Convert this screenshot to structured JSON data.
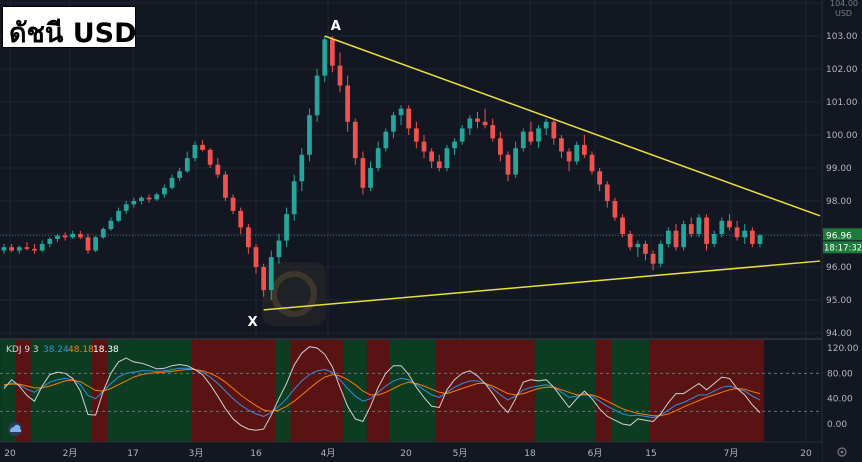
{
  "title": "ดัชนี USD",
  "colors": {
    "background": "#131722",
    "grid": "#1f2532",
    "up": "#26a69a",
    "down": "#ef5350",
    "trendline": "#e8e03a",
    "k_line": "#2f8fde",
    "d_line": "#f57c00",
    "j_line": "#d0d0d0",
    "kdj_bg_up": "#0c3d22",
    "kdj_bg_down": "#5a1313",
    "current_price_bg": "#1c7a3a"
  },
  "chart_data": [
    {
      "type": "candlestick",
      "symbol": "USD",
      "currency_label": "USD",
      "y_ticks": [
        "104.00",
        "103.00",
        "102.00",
        "101.00",
        "100.00",
        "99.00",
        "98.00",
        "97.00",
        "96.00",
        "95.00",
        "94.00"
      ],
      "ylim": [
        94.0,
        104.0
      ],
      "x_tick_labels": [
        "20",
        "2月",
        "17",
        "3月",
        "16",
        "4月",
        "20",
        "5月",
        "18",
        "6月",
        "15",
        "7月",
        "20"
      ],
      "current_price": "96.96",
      "countdown": "18:17:32",
      "pattern_points": {
        "A": "A",
        "X": "X"
      },
      "ohlc": [
        [
          96.5,
          96.7,
          96.4,
          96.6
        ],
        [
          96.6,
          96.7,
          96.45,
          96.5
        ],
        [
          96.5,
          96.65,
          96.4,
          96.6
        ],
        [
          96.6,
          96.75,
          96.5,
          96.55
        ],
        [
          96.55,
          96.7,
          96.4,
          96.5
        ],
        [
          96.5,
          96.8,
          96.45,
          96.7
        ],
        [
          96.7,
          96.9,
          96.6,
          96.85
        ],
        [
          96.85,
          97.0,
          96.75,
          96.95
        ],
        [
          96.95,
          97.05,
          96.8,
          96.9
        ],
        [
          96.9,
          97.1,
          96.85,
          97.0
        ],
        [
          97.0,
          97.1,
          96.85,
          96.9
        ],
        [
          96.9,
          97.0,
          96.4,
          96.5
        ],
        [
          96.5,
          96.95,
          96.45,
          96.9
        ],
        [
          96.9,
          97.2,
          96.85,
          97.15
        ],
        [
          97.15,
          97.5,
          97.1,
          97.4
        ],
        [
          97.4,
          97.8,
          97.35,
          97.7
        ],
        [
          97.7,
          98.0,
          97.6,
          97.9
        ],
        [
          97.9,
          98.1,
          97.8,
          98.0
        ],
        [
          98.0,
          98.15,
          97.9,
          98.1
        ],
        [
          98.1,
          98.2,
          97.95,
          98.05
        ],
        [
          98.05,
          98.25,
          98.0,
          98.2
        ],
        [
          98.2,
          98.5,
          98.1,
          98.4
        ],
        [
          98.4,
          98.8,
          98.35,
          98.7
        ],
        [
          98.7,
          99.0,
          98.6,
          98.9
        ],
        [
          98.9,
          99.5,
          98.85,
          99.3
        ],
        [
          99.3,
          99.8,
          99.2,
          99.7
        ],
        [
          99.7,
          99.85,
          99.5,
          99.55
        ],
        [
          99.55,
          99.6,
          99.0,
          99.1
        ],
        [
          99.1,
          99.3,
          98.7,
          98.8
        ],
        [
          98.8,
          98.9,
          98.0,
          98.1
        ],
        [
          98.1,
          98.2,
          97.6,
          97.7
        ],
        [
          97.7,
          97.8,
          97.0,
          97.2
        ],
        [
          97.2,
          97.3,
          96.4,
          96.6
        ],
        [
          96.6,
          96.7,
          95.8,
          96.0
        ],
        [
          96.0,
          96.1,
          95.1,
          95.3
        ],
        [
          95.3,
          96.5,
          95.0,
          96.3
        ],
        [
          96.3,
          97.0,
          96.1,
          96.8
        ],
        [
          96.8,
          97.8,
          96.6,
          97.6
        ],
        [
          97.6,
          98.8,
          97.4,
          98.6
        ],
        [
          98.6,
          99.6,
          98.3,
          99.4
        ],
        [
          99.4,
          100.8,
          99.2,
          100.6
        ],
        [
          100.6,
          102.0,
          100.4,
          101.8
        ],
        [
          101.8,
          103.0,
          101.6,
          102.9
        ],
        [
          102.9,
          103.0,
          101.9,
          102.1
        ],
        [
          102.1,
          102.5,
          101.3,
          101.5
        ],
        [
          101.5,
          101.8,
          100.1,
          100.4
        ],
        [
          100.4,
          100.5,
          99.1,
          99.3
        ],
        [
          99.3,
          99.5,
          98.2,
          98.4
        ],
        [
          98.4,
          99.2,
          98.3,
          99.0
        ],
        [
          99.0,
          99.8,
          98.9,
          99.6
        ],
        [
          99.6,
          100.2,
          99.5,
          100.1
        ],
        [
          100.1,
          100.7,
          99.9,
          100.6
        ],
        [
          100.6,
          100.9,
          100.3,
          100.8
        ],
        [
          100.8,
          100.9,
          100.0,
          100.2
        ],
        [
          100.2,
          100.4,
          99.6,
          99.8
        ],
        [
          99.8,
          100.0,
          99.3,
          99.5
        ],
        [
          99.5,
          99.6,
          99.0,
          99.2
        ],
        [
          99.2,
          99.4,
          98.9,
          99.0
        ],
        [
          99.0,
          99.7,
          98.9,
          99.6
        ],
        [
          99.6,
          99.9,
          99.4,
          99.8
        ],
        [
          99.8,
          100.3,
          99.7,
          100.2
        ],
        [
          100.2,
          100.6,
          100.0,
          100.5
        ],
        [
          100.5,
          100.7,
          100.2,
          100.4
        ],
        [
          100.4,
          100.8,
          100.2,
          100.3
        ],
        [
          100.3,
          100.5,
          99.8,
          99.9
        ],
        [
          99.9,
          100.1,
          99.2,
          99.4
        ],
        [
          99.4,
          99.5,
          98.6,
          98.8
        ],
        [
          98.8,
          99.8,
          98.7,
          99.6
        ],
        [
          99.6,
          100.2,
          99.5,
          100.1
        ],
        [
          100.1,
          100.4,
          99.7,
          99.8
        ],
        [
          99.8,
          100.3,
          99.6,
          100.2
        ],
        [
          100.2,
          100.5,
          100.0,
          100.4
        ],
        [
          100.4,
          100.5,
          99.7,
          99.9
        ],
        [
          99.9,
          100.0,
          99.3,
          99.5
        ],
        [
          99.5,
          99.6,
          98.9,
          99.2
        ],
        [
          99.2,
          99.8,
          99.1,
          99.7
        ],
        [
          99.7,
          100.0,
          99.3,
          99.4
        ],
        [
          99.4,
          99.5,
          98.8,
          98.9
        ],
        [
          98.9,
          99.0,
          98.3,
          98.5
        ],
        [
          98.5,
          98.6,
          97.8,
          98.0
        ],
        [
          98.0,
          98.1,
          97.4,
          97.5
        ],
        [
          97.5,
          97.6,
          96.9,
          97.0
        ],
        [
          97.0,
          97.1,
          96.5,
          96.6
        ],
        [
          96.6,
          96.8,
          96.3,
          96.7
        ],
        [
          96.7,
          96.8,
          96.2,
          96.4
        ],
        [
          96.4,
          96.5,
          95.9,
          96.1
        ],
        [
          96.1,
          96.8,
          96.0,
          96.7
        ],
        [
          96.7,
          97.2,
          96.6,
          97.1
        ],
        [
          97.1,
          97.3,
          96.5,
          96.6
        ],
        [
          96.6,
          97.4,
          96.5,
          97.3
        ],
        [
          97.3,
          97.5,
          96.9,
          97.0
        ],
        [
          97.0,
          97.6,
          96.9,
          97.5
        ],
        [
          97.5,
          97.6,
          96.5,
          96.7
        ],
        [
          96.7,
          97.1,
          96.6,
          97.0
        ],
        [
          97.0,
          97.5,
          96.9,
          97.4
        ],
        [
          97.4,
          97.6,
          97.1,
          97.2
        ],
        [
          97.2,
          97.4,
          96.8,
          96.9
        ],
        [
          96.9,
          97.3,
          96.7,
          97.1
        ],
        [
          97.1,
          97.2,
          96.6,
          96.7
        ],
        [
          96.7,
          97.0,
          96.6,
          96.96
        ]
      ],
      "trendlines": [
        {
          "label": "A",
          "from_index": 42,
          "from_price": 103.0,
          "to_price_at_right_edge": 97.55
        },
        {
          "label": "X",
          "from_index": 34,
          "from_price": 94.7,
          "to_price_at_right_edge": 96.18
        }
      ]
    },
    {
      "type": "line",
      "name": "KDJ",
      "label": "KDJ 9 3",
      "values_text": {
        "k": "38.24",
        "d": "48.18",
        "j": "18.38"
      },
      "y_ticks": [
        "120.00",
        "80.00",
        "40.00",
        "0.00"
      ],
      "ylim": [
        -20,
        130
      ],
      "series": [
        {
          "name": "K",
          "values": [
            60,
            65,
            62,
            55,
            50,
            58,
            66,
            70,
            72,
            70,
            62,
            45,
            40,
            52,
            64,
            74,
            80,
            82,
            84,
            84,
            83,
            84,
            86,
            88,
            88,
            86,
            82,
            74,
            64,
            52,
            40,
            30,
            22,
            16,
            12,
            18,
            28,
            40,
            55,
            68,
            78,
            84,
            86,
            82,
            70,
            56,
            44,
            36,
            40,
            50,
            60,
            68,
            72,
            70,
            62,
            54,
            46,
            42,
            50,
            58,
            64,
            68,
            68,
            64,
            56,
            46,
            38,
            44,
            54,
            58,
            60,
            62,
            58,
            50,
            42,
            44,
            48,
            44,
            36,
            28,
            22,
            16,
            13,
            14,
            12,
            10,
            14,
            22,
            30,
            34,
            40,
            46,
            46,
            52,
            58,
            60,
            56,
            52,
            44,
            38
          ]
        },
        {
          "name": "D",
          "values": [
            62,
            63,
            63,
            60,
            57,
            57,
            60,
            64,
            68,
            69,
            67,
            60,
            53,
            52,
            56,
            62,
            68,
            74,
            78,
            80,
            81,
            82,
            83,
            85,
            86,
            86,
            84,
            80,
            74,
            66,
            56,
            46,
            37,
            29,
            22,
            20,
            22,
            28,
            36,
            46,
            56,
            66,
            74,
            78,
            76,
            70,
            62,
            52,
            46,
            46,
            50,
            56,
            62,
            66,
            64,
            60,
            55,
            50,
            48,
            52,
            56,
            60,
            64,
            64,
            60,
            54,
            48,
            46,
            48,
            52,
            56,
            58,
            58,
            54,
            50,
            46,
            46,
            46,
            42,
            36,
            30,
            24,
            20,
            17,
            15,
            13,
            13,
            16,
            21,
            27,
            32,
            37,
            42,
            46,
            50,
            54,
            56,
            55,
            51,
            48
          ]
        },
        {
          "name": "J",
          "values": [
            56,
            70,
            60,
            45,
            36,
            60,
            78,
            82,
            80,
            72,
            52,
            15,
            14,
            52,
            80,
            98,
            104,
            98,
            96,
            92,
            87,
            88,
            92,
            94,
            92,
            86,
            78,
            62,
            44,
            24,
            8,
            -2,
            -8,
            -10,
            -8,
            14,
            40,
            64,
            93,
            112,
            122,
            120,
            110,
            90,
            58,
            28,
            8,
            4,
            28,
            58,
            80,
            92,
            92,
            78,
            58,
            42,
            28,
            26,
            54,
            70,
            80,
            84,
            76,
            64,
            48,
            30,
            18,
            40,
            66,
            70,
            68,
            70,
            58,
            42,
            26,
            40,
            52,
            40,
            24,
            12,
            6,
            0,
            -2,
            8,
            6,
            4,
            16,
            34,
            48,
            48,
            56,
            64,
            54,
            64,
            74,
            72,
            56,
            46,
            30,
            18
          ]
        }
      ]
    }
  ]
}
